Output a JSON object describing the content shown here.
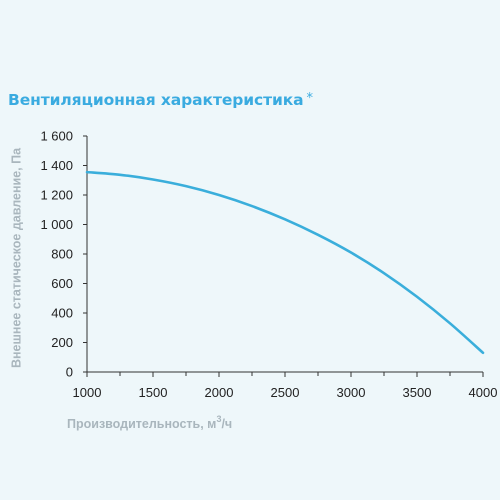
{
  "header": {
    "title": "Вентиляционная характеристика",
    "title_mark": "*"
  },
  "colors": {
    "accent": "#3aabe0",
    "curve": "#3aaedb",
    "axis_label": "#a9b6bd",
    "background": "#eef7fa"
  },
  "chart_data": {
    "type": "line",
    "title": "Вентиляционная характеристика *",
    "xlabel": "Производительность, м³/ч",
    "xlabel_parts": {
      "text": "Производительность, м",
      "sup": "3",
      "tail": "/ч"
    },
    "ylabel": "Внешнее статическое давление, Па",
    "xlim": [
      1000,
      4000
    ],
    "ylim": [
      0,
      1600
    ],
    "x_ticks": [
      1000,
      1500,
      2000,
      2500,
      3000,
      3500,
      4000
    ],
    "x_tick_labels": [
      "1000",
      "1500",
      "2000",
      "2500",
      "3000",
      "3500",
      "4000"
    ],
    "y_ticks": [
      0,
      200,
      400,
      600,
      800,
      1000,
      1200,
      1400,
      1600
    ],
    "y_tick_labels": [
      "0",
      "200",
      "400",
      "600",
      "800",
      "1 000",
      "1 200",
      "1 400",
      "1 600"
    ],
    "grid": false,
    "series": [
      {
        "x": [
          1000,
          1250,
          1500,
          1750,
          2000,
          2250,
          2500,
          2750,
          3000,
          3250,
          3500,
          3750,
          4000
        ],
        "values": [
          1355,
          1337,
          1305,
          1260,
          1200,
          1125,
          1035,
          930,
          810,
          670,
          510,
          330,
          130
        ]
      }
    ]
  }
}
